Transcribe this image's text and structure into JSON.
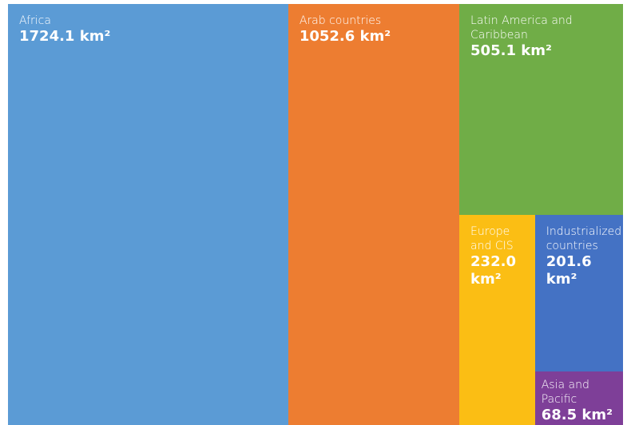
{
  "chart_data": {
    "type": "treemap",
    "categories": [
      "Africa",
      "Arab countries",
      "Latin America and Caribbean",
      "Europe and CIS",
      "Industrialized countries",
      "Asia and Pacific"
    ],
    "values": [
      1724.1,
      1052.6,
      505.1,
      232.0,
      201.6,
      68.5
    ],
    "value_labels": [
      "1724.1 km²",
      "1052.6 km²",
      "505.1 km²",
      "232.0 km²",
      "201.6 km²",
      "68.5 km²"
    ],
    "colors": [
      "#5b9bd5",
      "#ed7d31",
      "#70ad47",
      "#fbbe14",
      "#4472c4",
      "#7e3f98"
    ]
  }
}
